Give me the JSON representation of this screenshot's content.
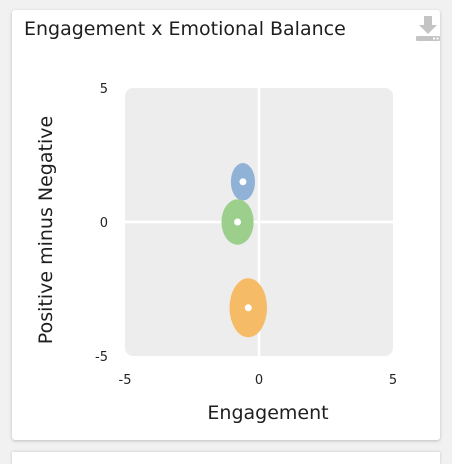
{
  "card": {
    "title": "Engagement x Emotional Balance",
    "download_icon": "download-icon"
  },
  "colors": {
    "plot_background": "#ededed",
    "axis_line": "#ffffff",
    "series_blue": "#8fb2d6",
    "series_green": "#9ccf8c",
    "series_orange": "#f6bb67",
    "marker_center": "#ffffff",
    "icon_gray": "#c4c4c4"
  },
  "chart_data": {
    "type": "scatter",
    "title": "Engagement x Emotional Balance",
    "xlabel": "Engagement",
    "ylabel": "Positive minus Negative",
    "xlim": [
      -5,
      5
    ],
    "ylim": [
      -5,
      5
    ],
    "x_ticks": [
      "-5",
      "0",
      "5"
    ],
    "y_ticks": [
      "5",
      "0",
      "-5"
    ],
    "grid": false,
    "zero_lines": true,
    "points": [
      {
        "x": -0.6,
        "y": 1.5,
        "x_spread": 0.45,
        "y_spread": 0.7,
        "color": "#8fb2d6"
      },
      {
        "x": -0.8,
        "y": 0.0,
        "x_spread": 0.6,
        "y_spread": 0.85,
        "color": "#9ccf8c"
      },
      {
        "x": -0.4,
        "y": -3.2,
        "x_spread": 0.7,
        "y_spread": 1.1,
        "color": "#f6bb67"
      }
    ]
  }
}
